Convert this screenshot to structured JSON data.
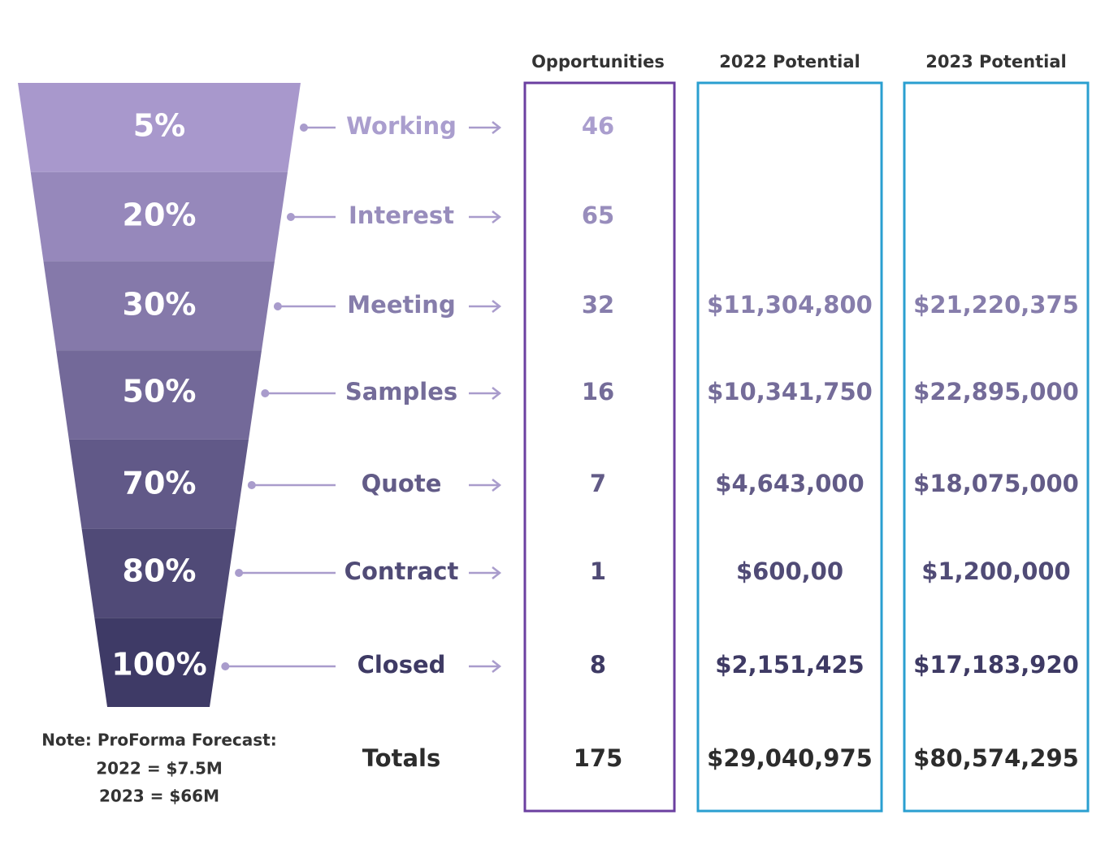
{
  "headers": {
    "opportunities": "Opportunities",
    "potential_2022": "2022 Potential",
    "potential_2023": "2023 Potential"
  },
  "stages": [
    {
      "percent": "5%",
      "name": "Working",
      "opportunities": "46"
    },
    {
      "percent": "20%",
      "name": "Interest",
      "opportunities": "65"
    },
    {
      "percent": "30%",
      "name": "Meeting",
      "opportunities": "32",
      "potential_2022": "$11,304,800",
      "potential_2023": "$21,220,375"
    },
    {
      "percent": "50%",
      "name": "Samples",
      "opportunities": "16",
      "potential_2022": "$10,341,750",
      "potential_2023": "$22,895,000"
    },
    {
      "percent": "70%",
      "name": "Quote",
      "opportunities": "7",
      "potential_2022": "$4,643,000",
      "potential_2023": "$18,075,000"
    },
    {
      "percent": "80%",
      "name": "Contract",
      "opportunities": "1",
      "potential_2022": "$600,00",
      "potential_2023": "$1,200,000"
    },
    {
      "percent": "100%",
      "name": "Closed",
      "opportunities": "8",
      "potential_2022": "$2,151,425",
      "potential_2023": "$17,183,920"
    }
  ],
  "totals": {
    "label": "Totals",
    "opportunities": "175",
    "potential_2022": "$29,040,975",
    "potential_2023": "$80,574,295"
  },
  "note": [
    "Note: ProForma Forecast:",
    "2022 = $7.5M",
    "2023 = $66M"
  ]
}
